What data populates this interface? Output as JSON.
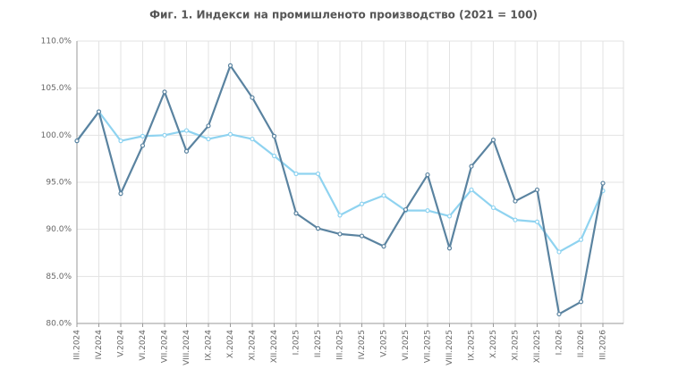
{
  "chart_data": {
    "type": "line",
    "title": "Фиг. 1. Индекси на промишленото производство (2021 = 100)",
    "categories": [
      "III.2024",
      "IV.2024",
      "V.2024",
      "VI.2024",
      "VII.2024",
      "VIII.2024",
      "IX.2024",
      "X.2024",
      "XI.2024",
      "XII.2024",
      "I.2025",
      "II.2025",
      "III.2025",
      "IV.2025",
      "V.2025",
      "VI.2025",
      "VII.2025",
      "VIII.2025",
      "IX.2025",
      "X.2025",
      "XI.2025",
      "XII.2025",
      "I.2026",
      "II.2026",
      "III.2026"
    ],
    "series": [
      {
        "color": "#5a83a0",
        "values": [
          99.4,
          102.5,
          93.8,
          98.9,
          104.6,
          98.3,
          101.0,
          107.4,
          104.0,
          99.9,
          91.7,
          90.1,
          89.5,
          89.3,
          88.2,
          92.1,
          95.8,
          88.0,
          96.7,
          99.5,
          93.0,
          94.2,
          81.0,
          82.3,
          94.9
        ]
      },
      {
        "color": "#8fd3f0",
        "values": [
          99.4,
          102.5,
          99.4,
          99.9,
          100.0,
          100.5,
          99.6,
          100.1,
          99.6,
          97.8,
          95.9,
          95.9,
          91.5,
          92.7,
          93.6,
          92.0,
          92.0,
          91.4,
          94.2,
          92.3,
          91.0,
          90.8,
          87.6,
          88.9,
          94.1
        ]
      }
    ],
    "ylim": [
      80,
      110
    ],
    "yticks": [
      {
        "value": 80,
        "label": "80.0%"
      },
      {
        "value": 85,
        "label": "85.0%"
      },
      {
        "value": 90,
        "label": "90.0%"
      },
      {
        "value": 95,
        "label": "95.0%"
      },
      {
        "value": 100,
        "label": "100.0%"
      },
      {
        "value": 105,
        "label": "105.0%"
      },
      {
        "value": 110,
        "label": "110.0%"
      }
    ],
    "grid": true
  }
}
